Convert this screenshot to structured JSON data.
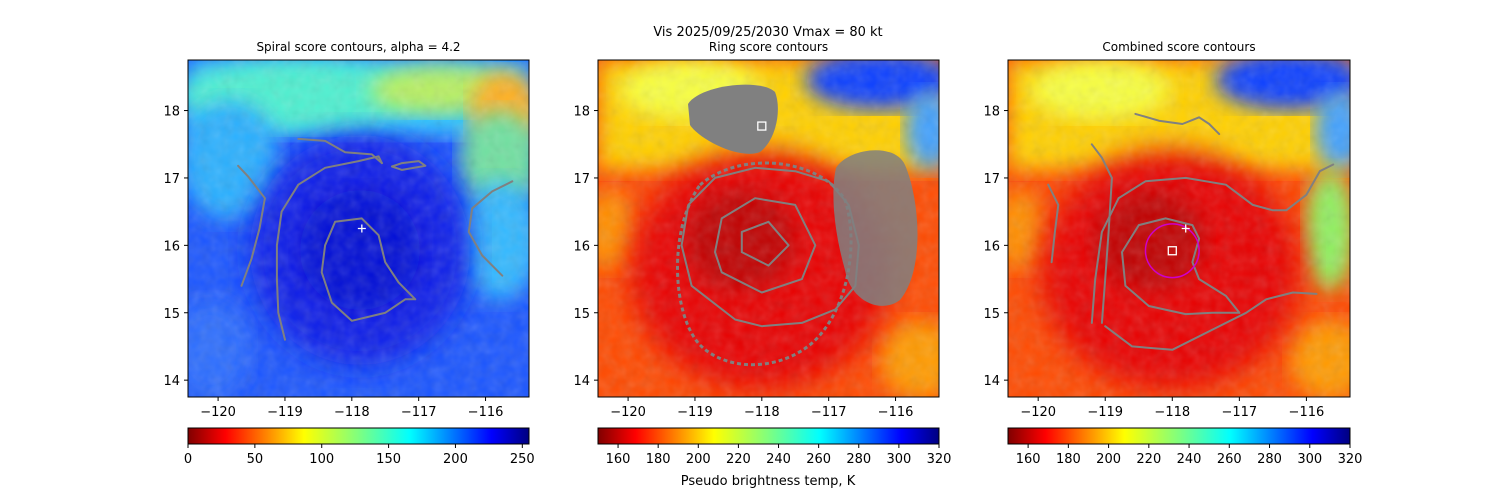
{
  "suptitle_line1": "Vis  2025/09/25/2030    Vmax = 80 kt",
  "xlabel_bottom": "Pseudo brightness temp, K",
  "chart_data": [
    {
      "type": "heatmap",
      "title": "Spiral score contours, alpha =  4.2",
      "xlim": [
        -120.45,
        -115.35
      ],
      "ylim": [
        13.75,
        18.75
      ],
      "xticks": [
        "−120",
        "−119",
        "−118",
        "−117",
        "−116"
      ],
      "xtick_values": [
        -120,
        -119,
        -118,
        -117,
        -116
      ],
      "yticks": [
        "14",
        "15",
        "16",
        "17",
        "18"
      ],
      "ytick_values": [
        14,
        15,
        16,
        17,
        18
      ],
      "colorbar": {
        "min": 0,
        "max": 255,
        "ticks": [
          "0",
          "50",
          "100",
          "150",
          "200",
          "250"
        ],
        "tick_values": [
          0,
          50,
          100,
          150,
          200,
          250
        ]
      },
      "center_plus": [
        -117.85,
        16.25
      ],
      "colormap": "jet_r",
      "contour_color": "#808080",
      "contours": [
        [
          [
            -119.0,
            14.6
          ],
          [
            -119.1,
            15.0
          ],
          [
            -119.12,
            15.5
          ],
          [
            -119.12,
            16.0
          ],
          [
            -119.05,
            16.5
          ],
          [
            -118.8,
            16.9
          ],
          [
            -118.4,
            17.15
          ],
          [
            -117.9,
            17.25
          ],
          [
            -117.6,
            17.32
          ],
          [
            -117.55,
            17.22
          ]
        ],
        [
          [
            -118.8,
            17.58
          ],
          [
            -118.4,
            17.55
          ],
          [
            -118.1,
            17.38
          ],
          [
            -117.7,
            17.35
          ],
          [
            -117.55,
            17.22
          ]
        ],
        [
          [
            -117.25,
            17.22
          ],
          [
            -117.0,
            17.25
          ],
          [
            -116.9,
            17.18
          ],
          [
            -117.25,
            17.12
          ],
          [
            -117.4,
            17.17
          ],
          [
            -117.25,
            17.22
          ]
        ],
        [
          [
            -119.65,
            15.4
          ],
          [
            -119.5,
            15.8
          ],
          [
            -119.38,
            16.25
          ],
          [
            -119.3,
            16.7
          ],
          [
            -119.55,
            17.02
          ],
          [
            -119.7,
            17.18
          ]
        ],
        [
          [
            -117.05,
            15.2
          ],
          [
            -117.3,
            15.45
          ],
          [
            -117.5,
            15.75
          ],
          [
            -117.6,
            16.15
          ],
          [
            -117.85,
            16.4
          ],
          [
            -118.25,
            16.35
          ],
          [
            -118.4,
            16.0
          ],
          [
            -118.45,
            15.6
          ],
          [
            -118.3,
            15.15
          ],
          [
            -118.0,
            14.88
          ],
          [
            -117.5,
            15.0
          ],
          [
            -117.2,
            15.2
          ],
          [
            -117.05,
            15.2
          ]
        ],
        [
          [
            -115.6,
            16.95
          ],
          [
            -115.9,
            16.8
          ],
          [
            -116.2,
            16.55
          ],
          [
            -116.25,
            16.2
          ],
          [
            -116.05,
            15.85
          ],
          [
            -115.75,
            15.55
          ]
        ]
      ]
    },
    {
      "type": "heatmap",
      "title": "Ring score contours",
      "xlim": [
        -120.45,
        -115.35
      ],
      "ylim": [
        13.75,
        18.75
      ],
      "xticks": [
        "−120",
        "−119",
        "−118",
        "−117",
        "−116"
      ],
      "xtick_values": [
        -120,
        -119,
        -118,
        -117,
        -116
      ],
      "yticks": [
        "14",
        "15",
        "16",
        "17",
        "18"
      ],
      "ytick_values": [
        14,
        15,
        16,
        17,
        18
      ],
      "colorbar": {
        "min": 150,
        "max": 320,
        "ticks": [
          "160",
          "180",
          "200",
          "220",
          "240",
          "260",
          "280",
          "300",
          "320"
        ],
        "tick_values": [
          160,
          180,
          200,
          220,
          240,
          260,
          280,
          300,
          320
        ]
      },
      "center_square": [
        -118.0,
        17.77
      ],
      "colormap": "jet",
      "contour_color": "#808080",
      "contours": [
        [
          [
            -118.4,
            14.9
          ],
          [
            -118.0,
            14.8
          ],
          [
            -117.4,
            14.85
          ],
          [
            -116.9,
            15.05
          ],
          [
            -116.6,
            15.4
          ],
          [
            -116.55,
            16.0
          ],
          [
            -116.7,
            16.6
          ],
          [
            -117.0,
            16.95
          ],
          [
            -117.5,
            17.1
          ],
          [
            -118.1,
            17.15
          ],
          [
            -118.7,
            17.0
          ],
          [
            -119.1,
            16.6
          ],
          [
            -119.2,
            16.0
          ],
          [
            -119.05,
            15.4
          ],
          [
            -118.4,
            14.9
          ]
        ],
        [
          [
            -118.6,
            15.6
          ],
          [
            -118.0,
            15.3
          ],
          [
            -117.4,
            15.5
          ],
          [
            -117.2,
            16.0
          ],
          [
            -117.5,
            16.6
          ],
          [
            -118.1,
            16.7
          ],
          [
            -118.6,
            16.4
          ],
          [
            -118.7,
            15.9
          ],
          [
            -118.6,
            15.6
          ]
        ],
        [
          [
            -118.3,
            15.9
          ],
          [
            -117.9,
            15.7
          ],
          [
            -117.6,
            16.0
          ],
          [
            -117.9,
            16.35
          ],
          [
            -118.3,
            16.2
          ],
          [
            -118.3,
            15.9
          ]
        ]
      ]
    },
    {
      "type": "heatmap",
      "title": "Combined score contours",
      "xlim": [
        -120.45,
        -115.35
      ],
      "ylim": [
        13.75,
        18.75
      ],
      "xticks": [
        "−120",
        "−119",
        "−118",
        "−117",
        "−116"
      ],
      "xtick_values": [
        -120,
        -119,
        -118,
        -117,
        -116
      ],
      "yticks": [
        "14",
        "15",
        "16",
        "17",
        "18"
      ],
      "ytick_values": [
        14,
        15,
        16,
        17,
        18
      ],
      "colorbar": {
        "min": 150,
        "max": 320,
        "ticks": [
          "160",
          "180",
          "200",
          "220",
          "240",
          "260",
          "280",
          "300",
          "320"
        ],
        "tick_values": [
          160,
          180,
          200,
          220,
          240,
          260,
          280,
          300,
          320
        ]
      },
      "center_plus": [
        -117.8,
        16.25
      ],
      "center_square": [
        -118.0,
        15.92
      ],
      "circle": {
        "center": [
          -118.0,
          15.92
        ],
        "radius_deg": 0.4,
        "color": "#cc00cc"
      },
      "colormap": "jet",
      "contour_color": "#808080",
      "contours": [
        [
          [
            -117.0,
            15.0
          ],
          [
            -117.2,
            15.25
          ],
          [
            -117.6,
            15.5
          ],
          [
            -117.7,
            15.75
          ],
          [
            -117.6,
            16.1
          ],
          [
            -117.7,
            16.3
          ],
          [
            -118.1,
            16.4
          ],
          [
            -118.5,
            16.3
          ],
          [
            -118.75,
            15.9
          ],
          [
            -118.7,
            15.4
          ],
          [
            -118.35,
            15.1
          ],
          [
            -117.8,
            14.98
          ],
          [
            -117.4,
            15.0
          ],
          [
            -117.0,
            15.0
          ]
        ],
        [
          [
            -119.2,
            14.85
          ],
          [
            -119.15,
            15.5
          ],
          [
            -119.05,
            16.2
          ],
          [
            -118.8,
            16.7
          ],
          [
            -118.4,
            16.95
          ],
          [
            -117.8,
            17.0
          ],
          [
            -117.2,
            16.9
          ],
          [
            -116.8,
            16.6
          ],
          [
            -116.5,
            16.52
          ],
          [
            -116.3,
            16.52
          ],
          [
            -116.0,
            16.75
          ],
          [
            -115.8,
            17.1
          ],
          [
            -115.6,
            17.2
          ]
        ],
        [
          [
            -117.3,
            17.65
          ],
          [
            -117.45,
            17.8
          ],
          [
            -117.6,
            17.9
          ],
          [
            -117.85,
            17.8
          ],
          [
            -118.2,
            17.85
          ],
          [
            -118.55,
            17.95
          ]
        ],
        [
          [
            -119.2,
            17.5
          ],
          [
            -119.05,
            17.3
          ],
          [
            -118.9,
            17.0
          ],
          [
            -118.95,
            16.2
          ],
          [
            -119.0,
            15.5
          ],
          [
            -119.05,
            14.85
          ]
        ],
        [
          [
            -119.0,
            14.8
          ],
          [
            -118.6,
            14.5
          ],
          [
            -118.0,
            14.45
          ],
          [
            -117.4,
            14.75
          ],
          [
            -116.9,
            15.0
          ],
          [
            -116.6,
            15.2
          ],
          [
            -116.2,
            15.3
          ],
          [
            -115.85,
            15.28
          ]
        ],
        [
          [
            -119.8,
            15.75
          ],
          [
            -119.75,
            16.2
          ],
          [
            -119.7,
            16.6
          ],
          [
            -119.85,
            16.9
          ]
        ]
      ]
    }
  ]
}
